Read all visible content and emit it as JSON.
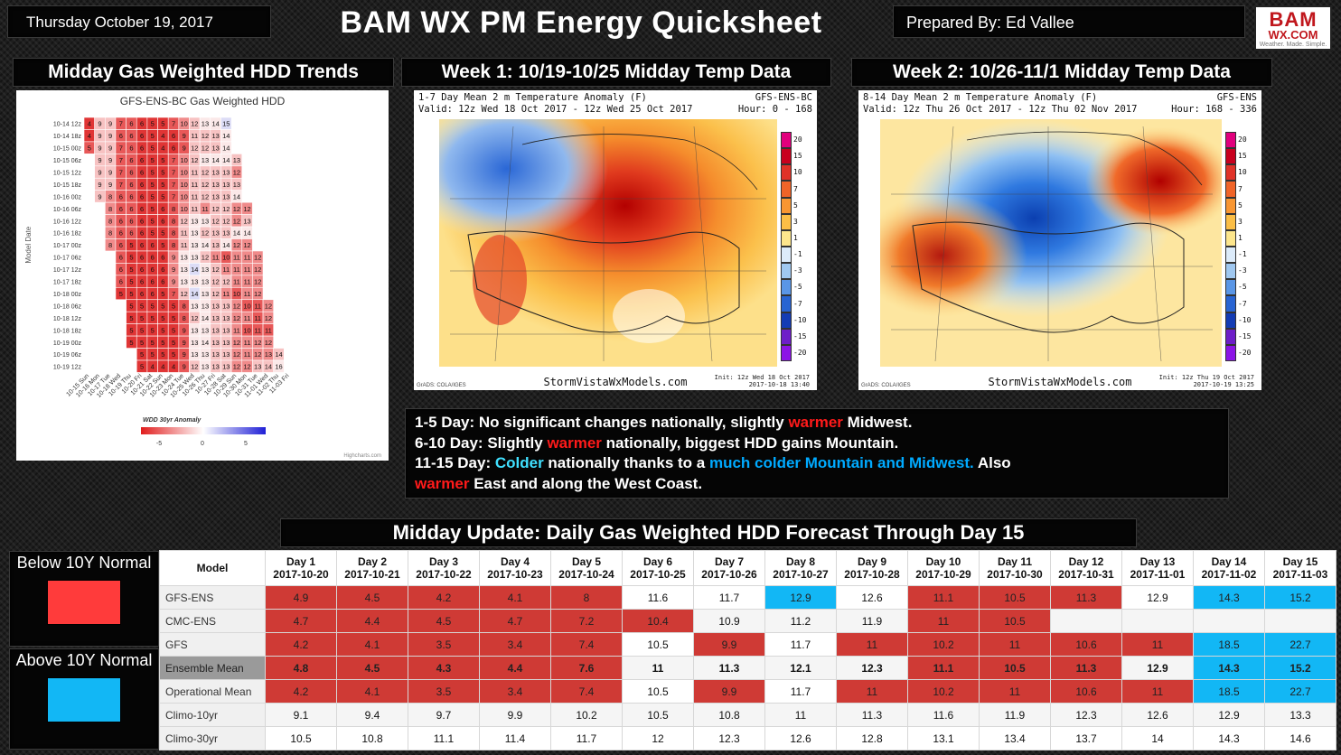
{
  "header": {
    "date": "Thursday October 19, 2017",
    "title": "BAM WX PM Energy Quicksheet",
    "prepared_by": "Prepared By: Ed Vallee",
    "logo_main": "BAM",
    "logo_sub": "WX.COM",
    "logo_tagline": "Weather. Made. Simple."
  },
  "sections": {
    "hdd_trends": "Midday Gas Weighted HDD Trends",
    "week1": "Week 1: 10/19-10/25 Midday Temp Data",
    "week2": "Week 2: 10/26-11/1 Midday Temp Data",
    "forecast_table": "Midday Update: Daily Gas Weighted HDD Forecast Through Day 15"
  },
  "hdd_chart": {
    "title": "GFS-ENS-BC Gas Weighted HDD",
    "ylabel": "Model Date",
    "legend_title": "WDD 30yr Anomaly",
    "legend_ticks": [
      "-5",
      "0",
      "5"
    ],
    "credit": "Highcharts.com",
    "columns": [
      "10-15 Sun",
      "10-16 Mon",
      "10-17 Tue",
      "10-18 Wed",
      "10-19 Thu",
      "10-20 Fri",
      "10-21 Sat",
      "10-22 Sun",
      "10-23 Mon",
      "10-24 Tue",
      "10-25 Wed",
      "10-26 Thu",
      "10-27 Fri",
      "10-28 Sat",
      "10-29 Sun",
      "10-30 Mon",
      "10-31 Tue",
      "11-01 Wed",
      "11-02 Thu",
      "11-03 Fri"
    ],
    "rows": [
      {
        "label": "10-14 12z",
        "start": 0,
        "values": [
          4,
          9,
          9,
          7,
          6,
          6,
          5,
          5,
          7,
          10,
          12,
          13,
          14,
          15
        ]
      },
      {
        "label": "10-14 18z",
        "start": 0,
        "values": [
          4,
          9,
          9,
          6,
          6,
          6,
          5,
          4,
          6,
          9,
          11,
          12,
          13,
          14
        ]
      },
      {
        "label": "10-15 00z",
        "start": 0,
        "values": [
          5,
          9,
          9,
          7,
          6,
          6,
          5,
          4,
          6,
          9,
          12,
          12,
          13,
          14
        ]
      },
      {
        "label": "10-15 06z",
        "start": 1,
        "values": [
          9,
          9,
          7,
          6,
          6,
          5,
          5,
          7,
          10,
          12,
          13,
          14,
          14,
          13
        ]
      },
      {
        "label": "10-15 12z",
        "start": 1,
        "values": [
          9,
          9,
          7,
          6,
          6,
          5,
          5,
          7,
          10,
          11,
          12,
          13,
          13,
          12
        ]
      },
      {
        "label": "10-15 18z",
        "start": 1,
        "values": [
          9,
          9,
          7,
          6,
          6,
          5,
          5,
          7,
          10,
          11,
          12,
          13,
          13,
          13
        ]
      },
      {
        "label": "10-16 00z",
        "start": 1,
        "values": [
          9,
          8,
          6,
          6,
          6,
          5,
          5,
          7,
          10,
          11,
          12,
          13,
          13,
          14
        ]
      },
      {
        "label": "10-16 06z",
        "start": 2,
        "values": [
          8,
          6,
          6,
          6,
          5,
          6,
          8,
          10,
          11,
          11,
          12,
          12,
          12,
          12
        ]
      },
      {
        "label": "10-16 12z",
        "start": 2,
        "values": [
          8,
          6,
          6,
          6,
          5,
          6,
          8,
          12,
          13,
          13,
          12,
          12,
          12,
          13
        ]
      },
      {
        "label": "10-16 18z",
        "start": 2,
        "values": [
          8,
          6,
          6,
          6,
          5,
          5,
          8,
          11,
          13,
          12,
          13,
          13,
          14,
          14
        ]
      },
      {
        "label": "10-17 00z",
        "start": 2,
        "values": [
          8,
          6,
          5,
          6,
          6,
          5,
          8,
          11,
          13,
          14,
          13,
          14,
          12,
          12
        ]
      },
      {
        "label": "10-17 06z",
        "start": 3,
        "values": [
          6,
          5,
          6,
          6,
          6,
          9,
          13,
          13,
          12,
          11,
          10,
          11,
          11,
          12
        ]
      },
      {
        "label": "10-17 12z",
        "start": 3,
        "values": [
          6,
          5,
          6,
          6,
          6,
          9,
          13,
          14,
          13,
          12,
          11,
          11,
          11,
          12
        ]
      },
      {
        "label": "10-17 18z",
        "start": 3,
        "values": [
          6,
          5,
          6,
          6,
          6,
          9,
          13,
          13,
          13,
          12,
          12,
          11,
          11,
          12
        ]
      },
      {
        "label": "10-18 00z",
        "start": 3,
        "values": [
          5,
          5,
          6,
          6,
          5,
          7,
          12,
          14,
          13,
          12,
          11,
          10,
          11,
          12
        ]
      },
      {
        "label": "10-18 06z",
        "start": 4,
        "values": [
          5,
          5,
          5,
          5,
          5,
          8,
          13,
          13,
          13,
          13,
          12,
          10,
          11,
          12
        ]
      },
      {
        "label": "10-18 12z",
        "start": 4,
        "values": [
          5,
          5,
          5,
          5,
          5,
          8,
          12,
          14,
          13,
          13,
          12,
          11,
          11,
          12
        ]
      },
      {
        "label": "10-18 18z",
        "start": 4,
        "values": [
          5,
          5,
          5,
          5,
          5,
          9,
          13,
          13,
          13,
          13,
          11,
          10,
          11,
          11
        ]
      },
      {
        "label": "10-19 00z",
        "start": 4,
        "values": [
          5,
          5,
          5,
          5,
          5,
          9,
          13,
          14,
          13,
          13,
          12,
          11,
          12,
          12
        ]
      },
      {
        "label": "10-19 06z",
        "start": 5,
        "values": [
          5,
          5,
          5,
          5,
          9,
          13,
          13,
          13,
          13,
          12,
          11,
          12,
          13,
          14
        ]
      },
      {
        "label": "10-19 12z",
        "start": 5,
        "values": [
          5,
          4,
          4,
          4,
          9,
          12,
          13,
          13,
          13,
          12,
          12,
          13,
          14,
          16
        ]
      }
    ]
  },
  "maps": [
    {
      "header_left_1": "1-7 Day Mean 2 m Temperature Anomaly (F)",
      "header_right_1": "GFS-ENS-BC",
      "header_left_2": "Valid: 12z Wed 18 Oct 2017 - 12z Wed 25 Oct 2017",
      "header_right_2": "Hour: 0 - 168",
      "footer": "StormVistaWxModels.com",
      "init_1": "Init: 12z Wed 18 Oct 2017",
      "init_2": "2017-10-18 13:40",
      "source": "GrADS: COLA/IGES"
    },
    {
      "header_left_1": "8-14 Day Mean 2 m Temperature Anomaly (F)",
      "header_right_1": "GFS-ENS",
      "header_left_2": "Valid: 12z Thu 26 Oct 2017 - 12z Thu 02 Nov 2017",
      "header_right_2": "Hour: 168 - 336",
      "footer": "StormVistaWxModels.com",
      "init_1": "Init: 12z Thu 19 Oct 2017",
      "init_2": "2017-10-19 13:25",
      "source": "GrADS: COLA/IGES"
    }
  ],
  "map_scale": [
    "20",
    "15",
    "10",
    "7",
    "5",
    "3",
    "1",
    "-1",
    "-3",
    "-5",
    "-7",
    "-10",
    "-15",
    "-20"
  ],
  "summary": {
    "l1_a": "1-5 Day: No significant changes nationally, slightly ",
    "l1_b": "warmer",
    "l1_c": " Midwest.",
    "l2_a": "6-10 Day: Slightly ",
    "l2_b": "warmer",
    "l2_c": " nationally, biggest HDD gains Mountain.",
    "l3_a": "11-15 Day: ",
    "l3_b": "Colder",
    "l3_c": " nationally thanks to a ",
    "l3_d": "much colder Mountain and Midwest.",
    "l3_e": " Also",
    "l4_a": "warmer",
    "l4_b": " East and along the West Coast."
  },
  "legend": {
    "below_label": "Below 10Y Normal",
    "above_label": "Above 10Y Normal",
    "below_color": "#ff3b3b",
    "above_color": "#12b7f5"
  },
  "table": {
    "model_header": "Model",
    "days": [
      {
        "day": "Day 1",
        "date": "2017-10-20"
      },
      {
        "day": "Day 2",
        "date": "2017-10-21"
      },
      {
        "day": "Day 3",
        "date": "2017-10-22"
      },
      {
        "day": "Day 4",
        "date": "2017-10-23"
      },
      {
        "day": "Day 5",
        "date": "2017-10-24"
      },
      {
        "day": "Day 6",
        "date": "2017-10-25"
      },
      {
        "day": "Day 7",
        "date": "2017-10-26"
      },
      {
        "day": "Day 8",
        "date": "2017-10-27"
      },
      {
        "day": "Day 9",
        "date": "2017-10-28"
      },
      {
        "day": "Day 10",
        "date": "2017-10-29"
      },
      {
        "day": "Day 11",
        "date": "2017-10-30"
      },
      {
        "day": "Day 12",
        "date": "2017-10-31"
      },
      {
        "day": "Day 13",
        "date": "2017-11-01"
      },
      {
        "day": "Day 14",
        "date": "2017-11-02"
      },
      {
        "day": "Day 15",
        "date": "2017-11-03"
      }
    ],
    "rows": [
      {
        "model": "GFS-ENS",
        "values": [
          "4.9",
          "4.5",
          "4.2",
          "4.1",
          "8",
          "11.6",
          "11.7",
          "12.9",
          "12.6",
          "11.1",
          "10.5",
          "11.3",
          "12.9",
          "14.3",
          "15.2"
        ],
        "status": [
          "r",
          "r",
          "r",
          "r",
          "r",
          "w",
          "w",
          "b",
          "w",
          "r",
          "r",
          "r",
          "w",
          "b",
          "b"
        ]
      },
      {
        "model": "CMC-ENS",
        "values": [
          "4.7",
          "4.4",
          "4.5",
          "4.7",
          "7.2",
          "10.4",
          "10.9",
          "11.2",
          "11.9",
          "11",
          "10.5",
          "",
          "",
          "",
          ""
        ],
        "status": [
          "r",
          "r",
          "r",
          "r",
          "r",
          "r",
          "w",
          "w",
          "w",
          "r",
          "r",
          "w",
          "w",
          "w",
          "w"
        ]
      },
      {
        "model": "GFS",
        "values": [
          "4.2",
          "4.1",
          "3.5",
          "3.4",
          "7.4",
          "10.5",
          "9.9",
          "11.7",
          "11",
          "10.2",
          "11",
          "10.6",
          "11",
          "18.5",
          "22.7"
        ],
        "status": [
          "r",
          "r",
          "r",
          "r",
          "r",
          "w",
          "r",
          "w",
          "r",
          "r",
          "r",
          "r",
          "r",
          "b",
          "b"
        ]
      },
      {
        "model": "Ensemble Mean",
        "values": [
          "4.8",
          "4.5",
          "4.3",
          "4.4",
          "7.6",
          "11",
          "11.3",
          "12.1",
          "12.3",
          "11.1",
          "10.5",
          "11.3",
          "12.9",
          "14.3",
          "15.2"
        ],
        "status": [
          "r",
          "r",
          "r",
          "r",
          "r",
          "w",
          "w",
          "w",
          "w",
          "r",
          "r",
          "r",
          "w",
          "b",
          "b"
        ]
      },
      {
        "model": "Operational Mean",
        "values": [
          "4.2",
          "4.1",
          "3.5",
          "3.4",
          "7.4",
          "10.5",
          "9.9",
          "11.7",
          "11",
          "10.2",
          "11",
          "10.6",
          "11",
          "18.5",
          "22.7"
        ],
        "status": [
          "r",
          "r",
          "r",
          "r",
          "r",
          "w",
          "r",
          "w",
          "r",
          "r",
          "r",
          "r",
          "r",
          "b",
          "b"
        ]
      },
      {
        "model": "Climo-10yr",
        "values": [
          "9.1",
          "9.4",
          "9.7",
          "9.9",
          "10.2",
          "10.5",
          "10.8",
          "11",
          "11.3",
          "11.6",
          "11.9",
          "12.3",
          "12.6",
          "12.9",
          "13.3"
        ],
        "status": [
          "w",
          "w",
          "w",
          "w",
          "w",
          "w",
          "w",
          "w",
          "w",
          "w",
          "w",
          "w",
          "w",
          "w",
          "w"
        ]
      },
      {
        "model": "Climo-30yr",
        "values": [
          "10.5",
          "10.8",
          "11.1",
          "11.4",
          "11.7",
          "12",
          "12.3",
          "12.6",
          "12.8",
          "13.1",
          "13.4",
          "13.7",
          "14",
          "14.3",
          "14.6"
        ],
        "status": [
          "w",
          "w",
          "w",
          "w",
          "w",
          "w",
          "w",
          "w",
          "w",
          "w",
          "w",
          "w",
          "w",
          "w",
          "w"
        ]
      }
    ]
  }
}
